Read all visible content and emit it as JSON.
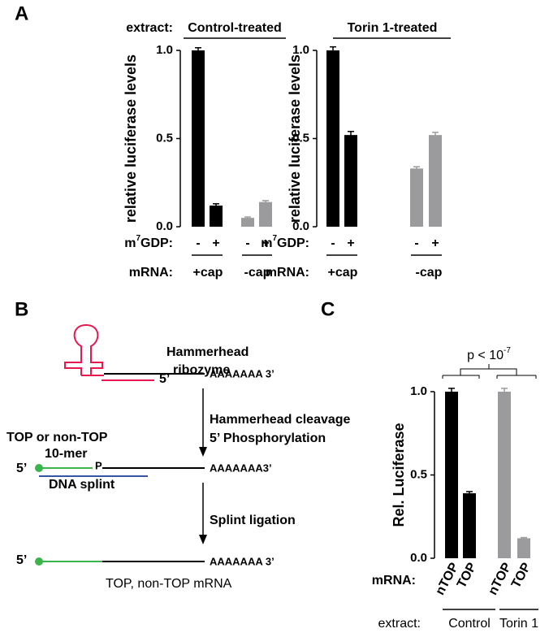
{
  "panel_labels": [
    "A",
    "B",
    "C"
  ],
  "chart_data": [
    {
      "type": "bar",
      "extract_label": "extract:",
      "title": "Control-treated",
      "ylabel": "relative luciferase levels",
      "categories": [
        "-",
        "+",
        "-",
        "+"
      ],
      "values": [
        1.0,
        0.12,
        0.05,
        0.14
      ],
      "errors": [
        0.015,
        0.01,
        0.005,
        0.008
      ],
      "colors": [
        "#000000",
        "#000000",
        "#9b9b9d",
        "#9b9b9d"
      ],
      "x_label": {
        "base": "m",
        "sup": "7",
        "rest": "GDP:"
      },
      "groups_label": "mRNA:",
      "groups": [
        "+cap",
        "-cap"
      ],
      "ylim": [
        0,
        1
      ],
      "yticks": [
        {
          "value": 0,
          "label": "0.0"
        },
        {
          "value": 0.5,
          "label": "0.5"
        },
        {
          "value": 1,
          "label": "1.0"
        }
      ]
    },
    {
      "type": "bar",
      "title": "Torin 1-treated",
      "ylabel": "relative luciferase levels",
      "categories": [
        "-",
        "+",
        "-",
        "+"
      ],
      "values": [
        1.0,
        0.52,
        0.33,
        0.52
      ],
      "errors": [
        0.02,
        0.02,
        0.01,
        0.015
      ],
      "colors": [
        "#000000",
        "#000000",
        "#9b9b9d",
        "#9b9b9d"
      ],
      "x_label": {
        "base": "m",
        "sup": "7",
        "rest": "GDP:"
      },
      "groups_label": "mRNA:",
      "groups": [
        "+cap",
        "-cap"
      ],
      "ylim": [
        0,
        1
      ],
      "yticks": [
        {
          "value": 0,
          "label": "0.0"
        },
        {
          "value": 0.5,
          "label": "0.5"
        },
        {
          "value": 1,
          "label": "1.0"
        }
      ]
    },
    {
      "type": "bar",
      "ylabel": "Rel. Luciferase",
      "annotation": {
        "base": "p < 10",
        "sup": "-7"
      },
      "categories": [
        "nTOP",
        "TOP",
        "nTOP",
        "TOP"
      ],
      "values": [
        1.0,
        0.39,
        1.0,
        0.12
      ],
      "errors": [
        0.02,
        0.01,
        0.02,
        0.004
      ],
      "colors": [
        "#000000",
        "#000000",
        "#9b9b9d",
        "#9b9b9d"
      ],
      "x_label": "mRNA:",
      "groups_label": "extract:",
      "groups": [
        "Control",
        "Torin 1"
      ],
      "ylim": [
        0,
        1
      ],
      "yticks": [
        {
          "value": 0,
          "label": "0.0"
        },
        {
          "value": 0.5,
          "label": "0.5"
        },
        {
          "value": 1,
          "label": "1.0"
        }
      ]
    }
  ],
  "diagram": {
    "labels": [
      "Hammerhead",
      "ribozyme",
      "5’",
      "AAAAAAA 3’",
      "Hammerhead cleavage",
      "5’ Phosphorylation",
      "TOP or non-TOP",
      "10-mer",
      "5’",
      "P",
      "AAAAAAA3’",
      "DNA splint",
      "Splint ligation",
      "5’",
      "AAAAAAA 3’",
      "TOP, non-TOP mRNA"
    ]
  }
}
